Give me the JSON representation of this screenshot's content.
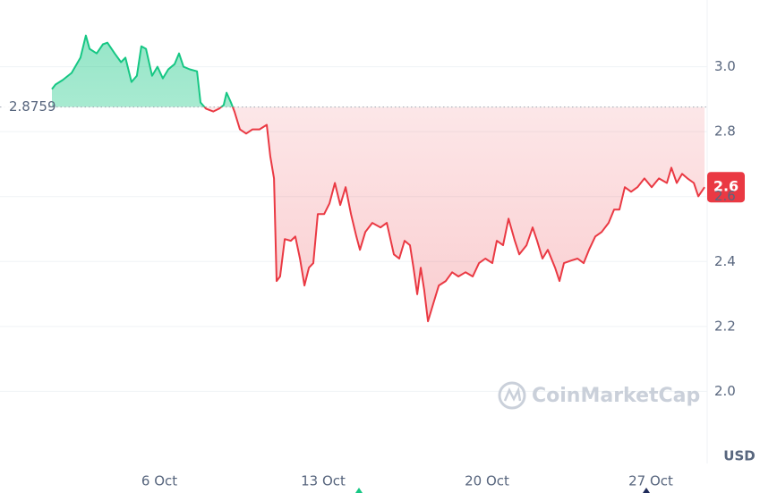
{
  "chart_data": {
    "type": "baseline-line",
    "currency": "USD",
    "watermark": "CoinMarketCap",
    "baseline": 2.8759,
    "current_label": "2.6",
    "colors": {
      "up": "#16c784",
      "down": "#ea3943"
    },
    "grid": true,
    "xlim": [
      -0.81,
      29.41
    ],
    "xticks": [
      {
        "value": 6,
        "label": "6 Oct"
      },
      {
        "value": 13,
        "label": "13 Oct"
      },
      {
        "value": 20,
        "label": "20 Oct"
      },
      {
        "value": 27,
        "label": "27 Oct"
      }
    ],
    "ylim": [
      1.8,
      3.2
    ],
    "yticks": [
      {
        "value": 2,
        "label": "2.0"
      },
      2.2,
      2.4,
      2.6,
      2.8,
      {
        "value": 3,
        "label": "3.0"
      }
    ],
    "x": [
      1.41,
      1.56,
      1.87,
      2.25,
      2.63,
      2.86,
      3.02,
      3.32,
      3.59,
      3.78,
      4.09,
      4.36,
      4.55,
      4.81,
      5.04,
      5.23,
      5.43,
      5.69,
      5.92,
      6.15,
      6.38,
      6.65,
      6.84,
      7.03,
      7.3,
      7.61,
      7.76,
      7.99,
      8.3,
      8.56,
      8.75,
      8.87,
      9.06,
      9.21,
      9.44,
      9.71,
      9.98,
      10.28,
      10.59,
      10.74,
      10.9,
      11.01,
      11.16,
      11.36,
      11.62,
      11.81,
      12.01,
      12.2,
      12.39,
      12.58,
      12.77,
      13.04,
      13.27,
      13.5,
      13.73,
      13.96,
      14.19,
      14.42,
      14.57,
      14.8,
      15.1,
      15.45,
      15.72,
      16.02,
      16.25,
      16.48,
      16.71,
      16.86,
      17.02,
      17.17,
      17.32,
      17.48,
      17.71,
      17.94,
      18.24,
      18.51,
      18.78,
      19.08,
      19.39,
      19.66,
      19.93,
      20.23,
      20.42,
      20.69,
      20.92,
      21.19,
      21.38,
      21.69,
      21.95,
      22.14,
      22.37,
      22.6,
      22.91,
      23.1,
      23.29,
      23.6,
      23.87,
      24.13,
      24.36,
      24.63,
      24.9,
      25.2,
      25.43,
      25.66,
      25.89,
      26.16,
      26.43,
      26.73,
      27.04,
      27.35,
      27.69,
      27.88,
      28.11,
      28.34,
      28.57,
      28.84,
      29.03,
      29.3
    ],
    "values": [
      2.931,
      2.945,
      2.959,
      2.981,
      3.028,
      3.096,
      3.055,
      3.041,
      3.069,
      3.074,
      3.041,
      3.014,
      3.028,
      2.953,
      2.972,
      3.063,
      3.055,
      2.972,
      3.0,
      2.964,
      2.992,
      3.008,
      3.041,
      3.0,
      2.992,
      2.986,
      2.89,
      2.871,
      2.862,
      2.871,
      2.882,
      2.92,
      2.89,
      2.862,
      2.807,
      2.794,
      2.807,
      2.807,
      2.821,
      2.725,
      2.656,
      2.34,
      2.354,
      2.469,
      2.464,
      2.477,
      2.409,
      2.326,
      2.381,
      2.395,
      2.546,
      2.546,
      2.579,
      2.642,
      2.574,
      2.629,
      2.546,
      2.477,
      2.436,
      2.491,
      2.519,
      2.505,
      2.519,
      2.422,
      2.409,
      2.464,
      2.45,
      2.381,
      2.299,
      2.381,
      2.312,
      2.216,
      2.271,
      2.326,
      2.34,
      2.367,
      2.354,
      2.367,
      2.354,
      2.395,
      2.409,
      2.395,
      2.464,
      2.45,
      2.532,
      2.464,
      2.422,
      2.45,
      2.505,
      2.464,
      2.409,
      2.436,
      2.381,
      2.34,
      2.395,
      2.403,
      2.409,
      2.395,
      2.436,
      2.477,
      2.491,
      2.519,
      2.56,
      2.56,
      2.629,
      2.615,
      2.629,
      2.656,
      2.629,
      2.656,
      2.642,
      2.689,
      2.642,
      2.67,
      2.656,
      2.642,
      2.601,
      2.629
    ]
  }
}
